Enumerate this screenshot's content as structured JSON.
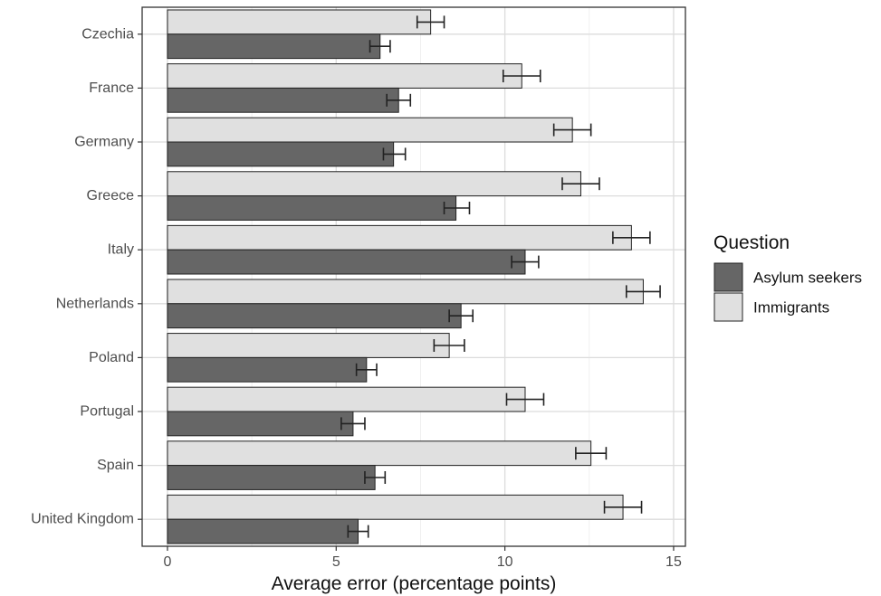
{
  "chart_data": {
    "type": "bar",
    "orientation": "horizontal",
    "categories": [
      "Czechia",
      "France",
      "Germany",
      "Greece",
      "Italy",
      "Netherlands",
      "Poland",
      "Portugal",
      "Spain",
      "United Kingdom"
    ],
    "series": [
      {
        "name": "Immigrants",
        "color": "#e0e0e0",
        "values": [
          7.8,
          10.5,
          12.0,
          12.25,
          13.75,
          14.1,
          8.35,
          10.6,
          12.55,
          13.5
        ],
        "error_low": [
          7.4,
          9.95,
          11.45,
          11.7,
          13.2,
          13.6,
          7.9,
          10.05,
          12.1,
          12.95
        ],
        "error_high": [
          8.2,
          11.05,
          12.55,
          12.8,
          14.3,
          14.6,
          8.8,
          11.15,
          13.0,
          14.05
        ]
      },
      {
        "name": "Asylum seekers",
        "color": "#666666",
        "values": [
          6.3,
          6.85,
          6.7,
          8.55,
          10.6,
          8.7,
          5.9,
          5.5,
          6.15,
          5.65
        ],
        "error_low": [
          6.0,
          6.5,
          6.4,
          8.2,
          10.2,
          8.35,
          5.6,
          5.15,
          5.85,
          5.35
        ],
        "error_high": [
          6.6,
          7.2,
          7.05,
          8.95,
          11.0,
          9.05,
          6.2,
          5.85,
          6.45,
          5.95
        ]
      }
    ],
    "xticks": [
      0,
      5,
      10,
      15
    ],
    "xlim": [
      -0.75,
      15.35
    ],
    "xlabel": "Average error (percentage points)",
    "ylabel": "",
    "grid": true,
    "legend": {
      "title": "Question",
      "position": "right",
      "entries": [
        {
          "label": "Asylum seekers",
          "color": "#666666"
        },
        {
          "label": "Immigrants",
          "color": "#e0e0e0"
        }
      ]
    }
  }
}
